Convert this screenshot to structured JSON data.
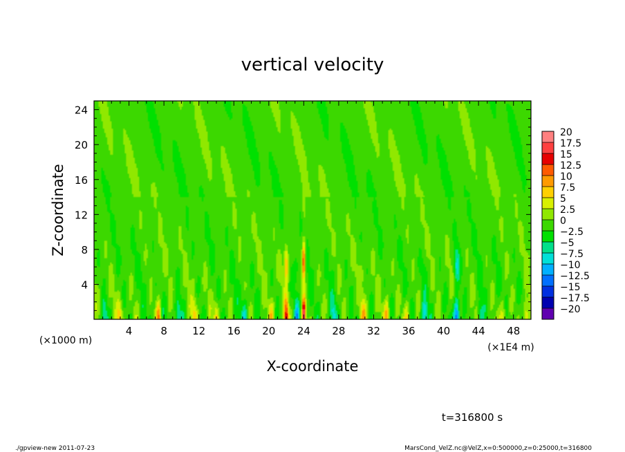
{
  "chart_data": {
    "type": "heatmap",
    "title": "vertical velocity",
    "xlabel": "X-coordinate",
    "ylabel": "Z-coordinate",
    "x_unit_label": "(×1E4 m)",
    "y_unit_label": "(×1000 m)",
    "xlim": [
      0,
      50
    ],
    "ylim": [
      0,
      25
    ],
    "x_ticks": [
      4,
      8,
      12,
      16,
      20,
      24,
      28,
      32,
      36,
      40,
      44,
      48
    ],
    "y_ticks": [
      4,
      8,
      12,
      16,
      20,
      24
    ],
    "colorbar": {
      "levels": [
        "20",
        "17.5",
        "15",
        "12.5",
        "10",
        "7.5",
        "5",
        "2.5",
        "0",
        "−2.5",
        "−5",
        "−7.5",
        "−10",
        "−12.5",
        "−15",
        "−17.5",
        "−20"
      ],
      "colors": [
        "#ff8080",
        "#ff4040",
        "#e60000",
        "#ff5a00",
        "#ff9a00",
        "#ffd000",
        "#d8f000",
        "#90e800",
        "#3cd800",
        "#00e000",
        "#00e08a",
        "#00e0d8",
        "#00b0ff",
        "#0070ff",
        "#0030e0",
        "#0000b0",
        "#6000b0"
      ]
    },
    "features": [
      {
        "x": 24.0,
        "z_top": 10.5,
        "w": 5.5,
        "peak": 19.0
      },
      {
        "x": 22.0,
        "z_top": 8.5,
        "w": 4.0,
        "peak": 14.0
      },
      {
        "x": 7.4,
        "z_top": 5.5,
        "w": 3.5,
        "peak": 10.0
      },
      {
        "x": 33.5,
        "z_top": 6.0,
        "w": 3.5,
        "peak": 8.0
      },
      {
        "x": 30.8,
        "z_top": 5.0,
        "w": 3.0,
        "peak": 7.0
      },
      {
        "x": 41.5,
        "z_top": 7.0,
        "w": 3.0,
        "peak": -15.0
      },
      {
        "x": 9.6,
        "z_top": 4.5,
        "w": 3.0,
        "peak": -7.0
      },
      {
        "x": 14.0,
        "z_top": 4.0,
        "w": 3.5,
        "peak": 7.0
      },
      {
        "x": 17.2,
        "z_top": 5.0,
        "w": 3.0,
        "peak": -6.0
      },
      {
        "x": 3.0,
        "z_top": 4.0,
        "w": 3.0,
        "peak": 6.0
      },
      {
        "x": 1.2,
        "z_top": 3.0,
        "w": 3.0,
        "peak": -6.0
      },
      {
        "x": 46.8,
        "z_top": 4.5,
        "w": 3.0,
        "peak": 7.0
      },
      {
        "x": 49.4,
        "z_top": 3.5,
        "w": 3.0,
        "peak": 8.0
      },
      {
        "x": 37.8,
        "z_top": 5.0,
        "w": 3.0,
        "peak": -7.0
      },
      {
        "x": 27.4,
        "z_top": 5.0,
        "w": 3.0,
        "peak": -6.0
      },
      {
        "x": 20.3,
        "z_top": 3.5,
        "w": 3.0,
        "peak": 6.0
      },
      {
        "x": 35.8,
        "z_top": 4.5,
        "w": 3.0,
        "peak": 6.0
      },
      {
        "x": 44.2,
        "z_top": 4.0,
        "w": 3.0,
        "peak": -6.0
      },
      {
        "x": 11.5,
        "z_top": 5.0,
        "w": 3.0,
        "peak": 6.0
      },
      {
        "x": 23.2,
        "z_top": 6.0,
        "w": 3.0,
        "peak": -8.0
      }
    ]
  },
  "time_label": "t=316800 s",
  "footer": {
    "left": "./gpview-new   2011-07-23",
    "right": "MarsCond_VelZ.nc@VelZ,x=0:500000,z=0:25000,t=316800"
  }
}
